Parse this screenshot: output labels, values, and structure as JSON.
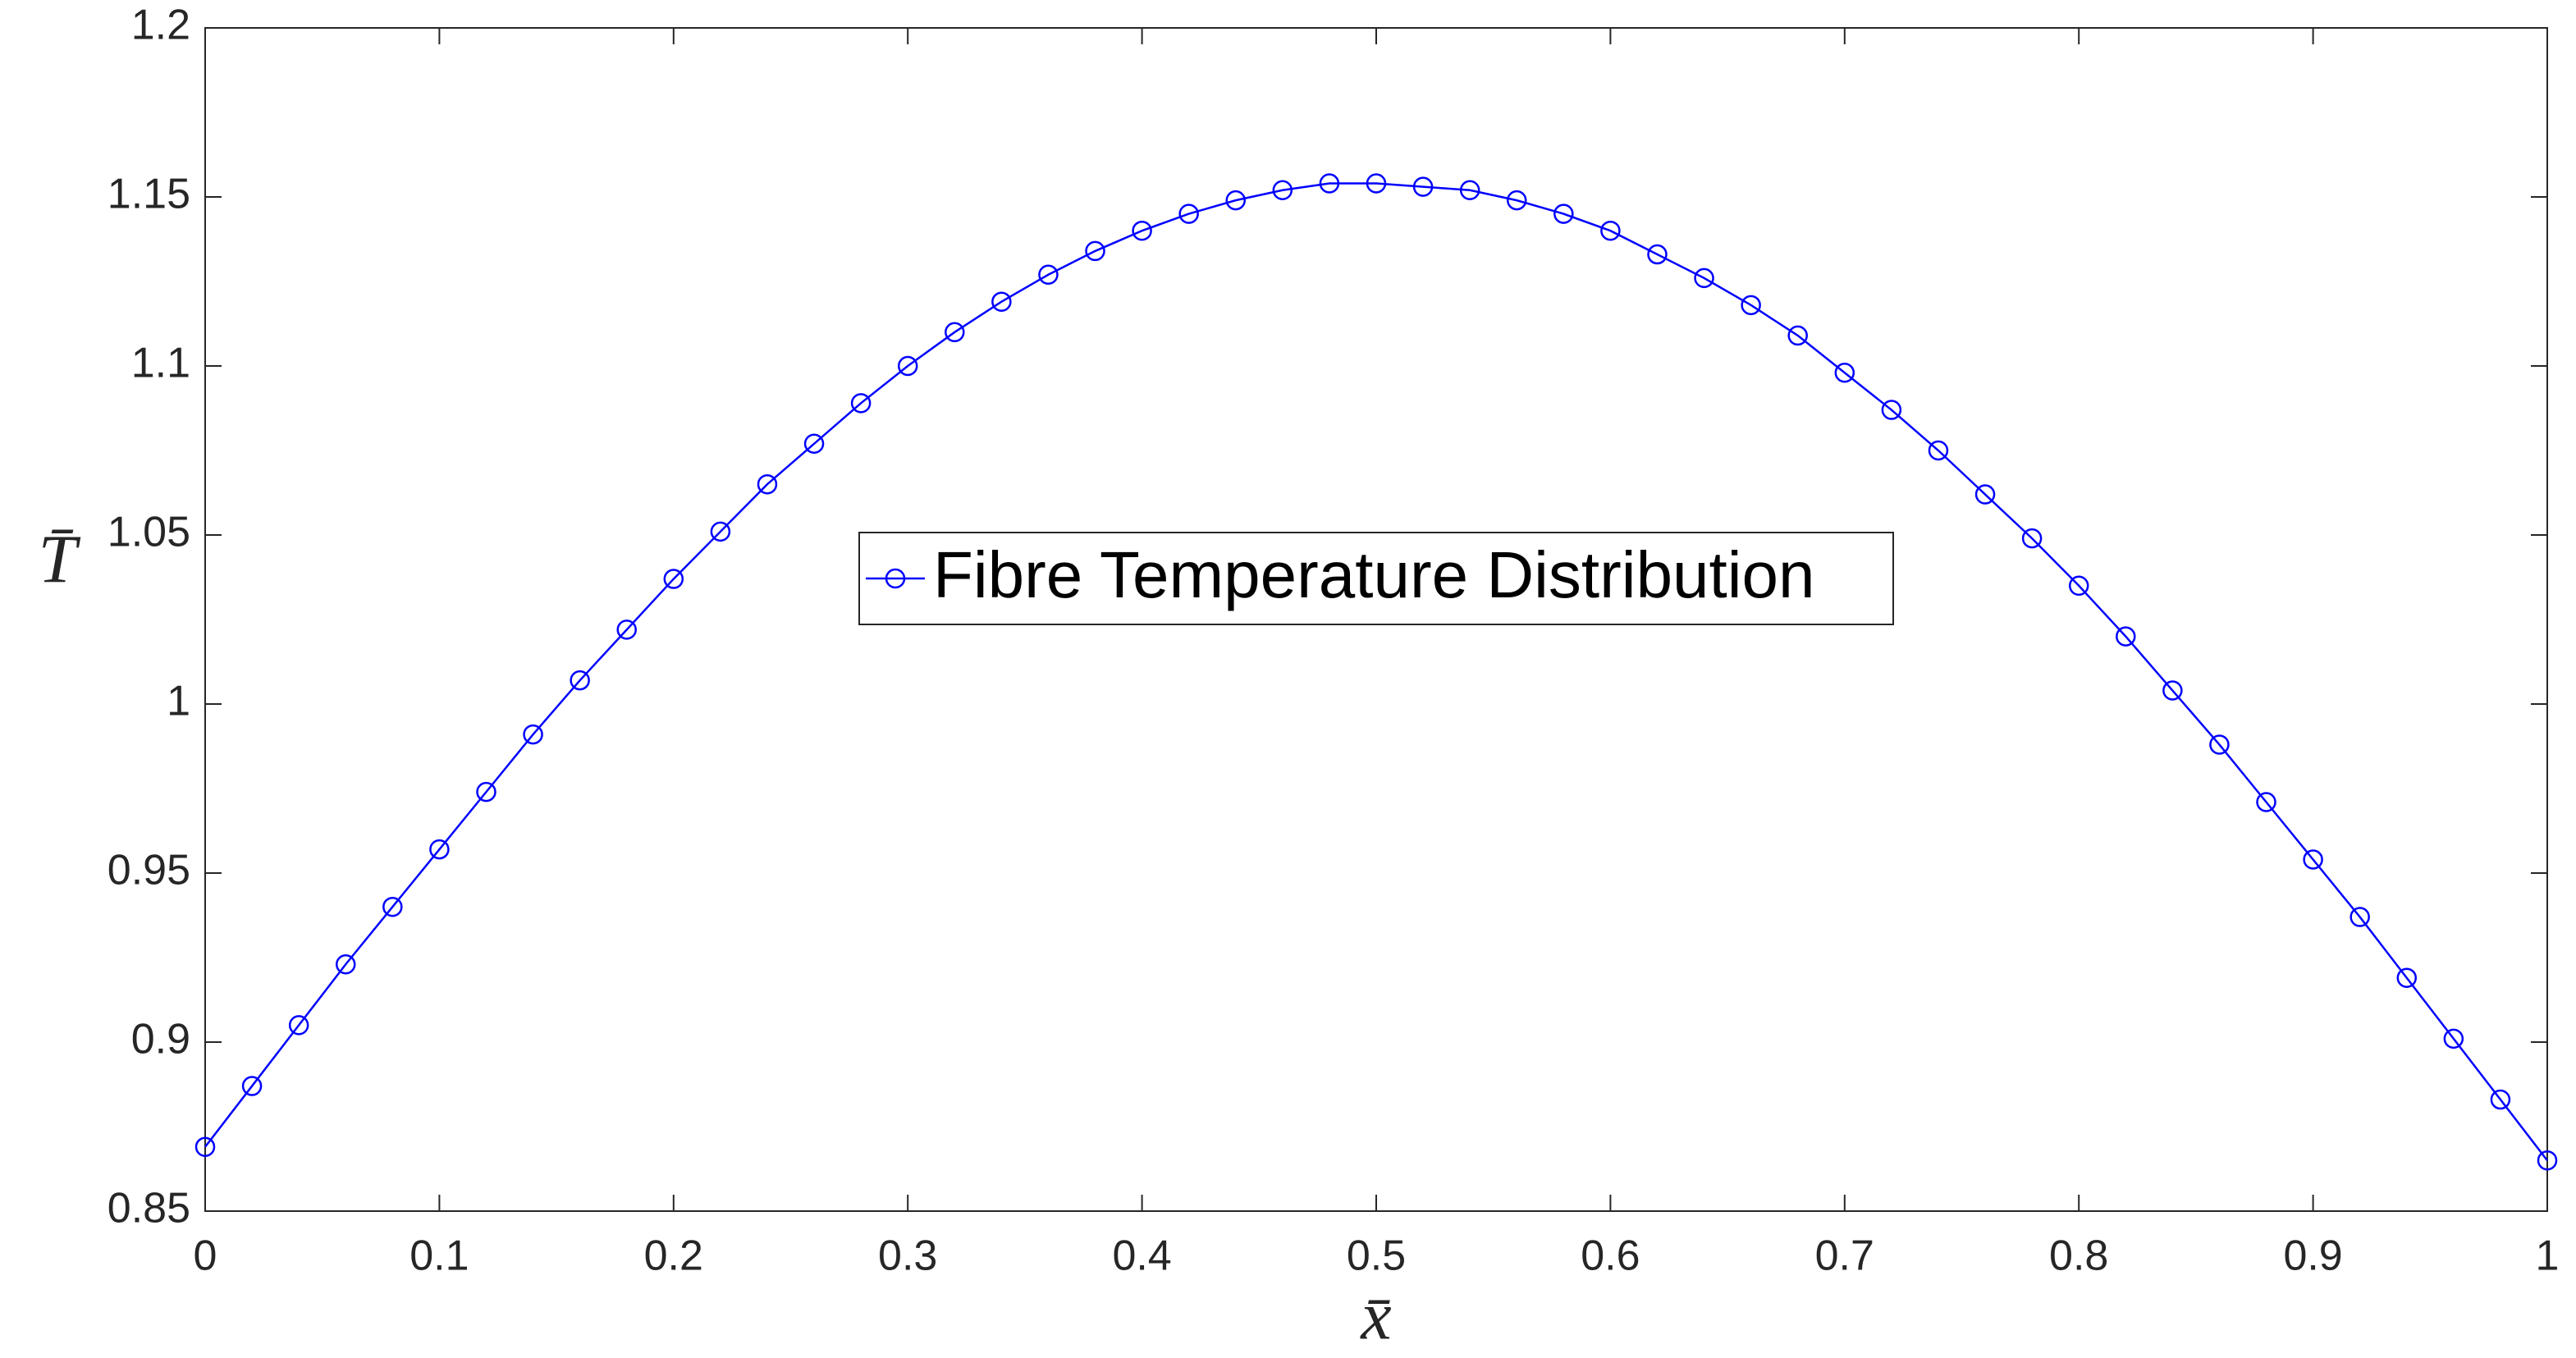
{
  "chart_data": {
    "type": "line",
    "xlabel": "x̄",
    "ylabel": "T̄",
    "x": [
      0,
      0.02,
      0.04,
      0.06,
      0.08,
      0.1,
      0.12,
      0.14,
      0.16,
      0.18,
      0.2,
      0.22,
      0.24,
      0.26,
      0.28,
      0.3,
      0.32,
      0.34,
      0.36,
      0.38,
      0.4,
      0.42,
      0.44,
      0.46,
      0.48,
      0.5,
      0.52,
      0.54,
      0.56,
      0.58,
      0.6,
      0.62,
      0.64,
      0.66,
      0.68,
      0.7,
      0.72,
      0.74,
      0.76,
      0.78,
      0.8,
      0.82,
      0.84,
      0.86,
      0.88,
      0.9,
      0.92,
      0.94,
      0.96,
      0.98,
      1
    ],
    "series": [
      {
        "name": "Fibre Temperature Distribution",
        "color": "#0000ff",
        "values": [
          0.869,
          0.887,
          0.905,
          0.923,
          0.94,
          0.957,
          0.974,
          0.991,
          1.007,
          1.022,
          1.037,
          1.051,
          1.065,
          1.077,
          1.089,
          1.1,
          1.11,
          1.119,
          1.127,
          1.134,
          1.14,
          1.145,
          1.149,
          1.152,
          1.154,
          1.154,
          1.153,
          1.152,
          1.149,
          1.145,
          1.14,
          1.133,
          1.126,
          1.118,
          1.109,
          1.098,
          1.087,
          1.075,
          1.062,
          1.049,
          1.035,
          1.02,
          1.004,
          0.988,
          0.971,
          0.954,
          0.937,
          0.919,
          0.901,
          0.883,
          0.865
        ]
      }
    ],
    "xlim": [
      0,
      1
    ],
    "ylim": [
      0.85,
      1.2
    ],
    "xticks": [
      0,
      0.1,
      0.2,
      0.3,
      0.4,
      0.5,
      0.6,
      0.7,
      0.8,
      0.9,
      1
    ],
    "yticks": [
      0.85,
      0.9,
      0.95,
      1,
      1.05,
      1.1,
      1.15,
      1.2
    ],
    "grid": false,
    "legend": "center"
  }
}
